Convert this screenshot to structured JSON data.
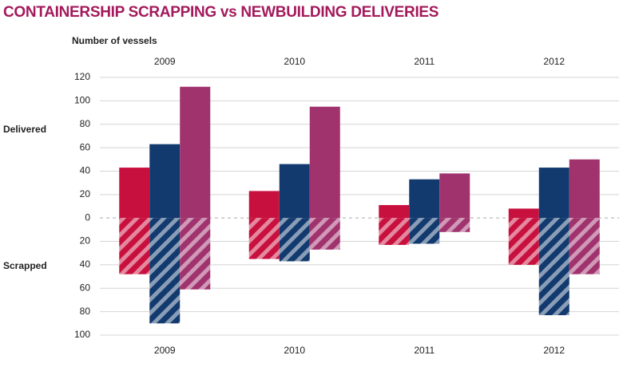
{
  "chart_data": {
    "type": "bar",
    "title": "CONTAINERSHIP SCRAPPING vs NEWBUILDING DELIVERIES",
    "ylabel": "Number of vessels",
    "annotations": [
      "Delivered",
      "Scrapped"
    ],
    "categories": [
      "2009",
      "2010",
      "2011",
      "2012"
    ],
    "series": [
      {
        "color": "#c8103e",
        "values": [
          43,
          23,
          11,
          8
        ]
      },
      {
        "color": "#123a6e",
        "values": [
          63,
          46,
          33,
          43
        ]
      },
      {
        "color": "#a0336e",
        "values": [
          112,
          95,
          38,
          50
        ]
      },
      {
        "color": "#c8103e",
        "hatched": true,
        "values": [
          -48,
          -35,
          -23,
          -40
        ]
      },
      {
        "color": "#123a6e",
        "hatched": true,
        "values": [
          -90,
          -37,
          -22,
          -83
        ]
      },
      {
        "color": "#a0336e",
        "hatched": true,
        "values": [
          -61,
          -27,
          -12,
          -48
        ]
      }
    ],
    "ylim": [
      -100,
      120
    ],
    "yticks": [
      120,
      100,
      80,
      60,
      40,
      20,
      0,
      {
        "value": -20,
        "label": "20"
      },
      {
        "value": -40,
        "label": "40"
      },
      {
        "value": -60,
        "label": "60"
      },
      {
        "value": -80,
        "label": "80"
      },
      {
        "value": -100,
        "label": "100"
      }
    ],
    "grid": true
  }
}
